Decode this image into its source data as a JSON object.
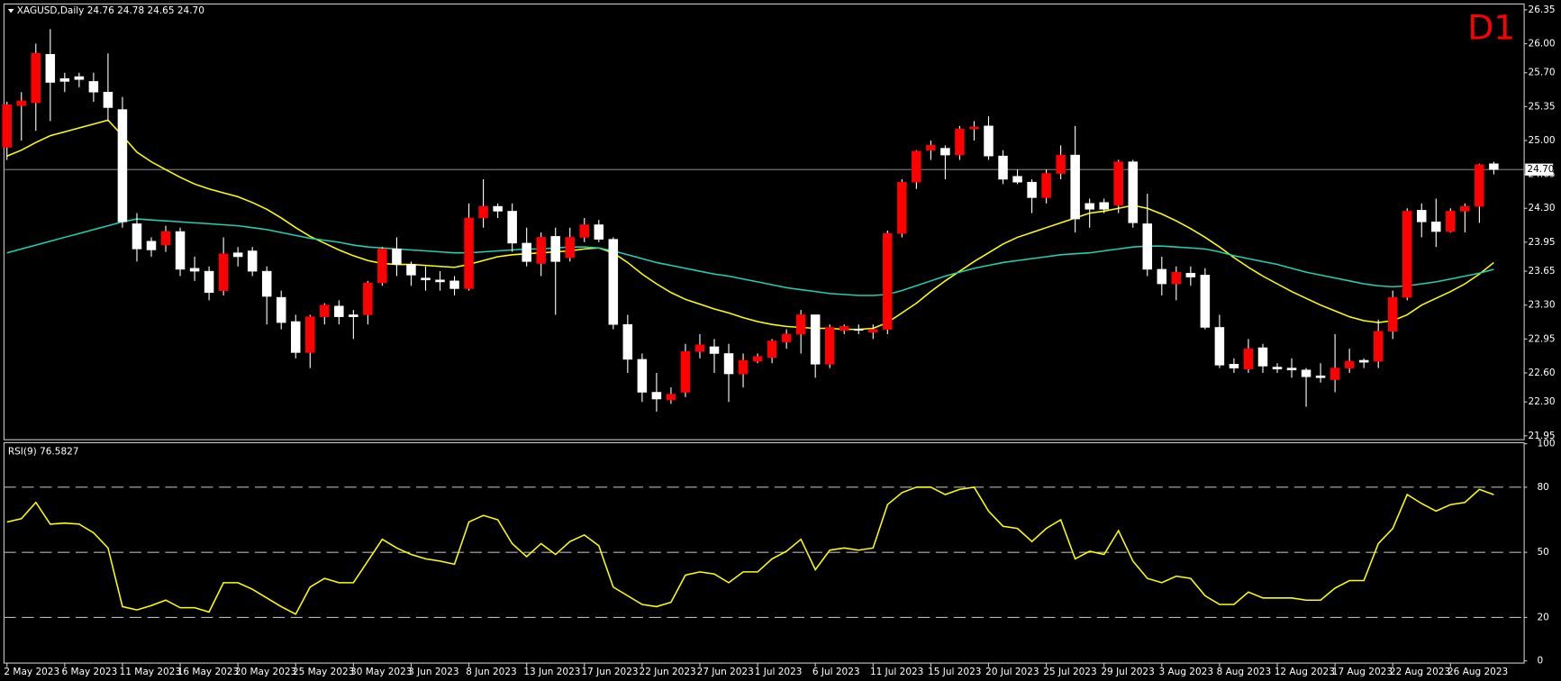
{
  "chart_data": [
    {
      "type": "candlestick",
      "title": "XAGUSD,Daily  24.76 24.78 24.65 24.70",
      "corner_label": "D1",
      "corner_color": "#ff0000",
      "up_color": "#ff0000",
      "down_color": "#ffffff",
      "wick_color": "#ffffff",
      "categories": [
        "2 May 2023",
        null,
        null,
        null,
        "6 May 2023",
        null,
        null,
        null,
        "11 May 2023",
        null,
        null,
        null,
        "16 May 2023",
        null,
        null,
        null,
        "20 May 2023",
        null,
        null,
        null,
        "25 May 2023",
        null,
        null,
        null,
        "30 May 2023",
        null,
        null,
        null,
        "3 Jun 2023",
        null,
        null,
        null,
        "8 Jun 2023",
        null,
        null,
        null,
        "13 Jun 2023",
        null,
        null,
        null,
        "17 Jun 2023",
        null,
        null,
        null,
        "22 Jun 2023",
        null,
        null,
        null,
        "27 Jun 2023",
        null,
        null,
        null,
        "1 Jul 2023",
        null,
        null,
        null,
        "6 Jul 2023",
        null,
        null,
        null,
        "11 Jul 2023",
        null,
        null,
        null,
        "15 Jul 2023",
        null,
        null,
        null,
        "20 Jul 2023",
        null,
        null,
        null,
        "25 Jul 2023",
        null,
        null,
        null,
        "29 Jul 2023",
        null,
        null,
        null,
        "3 Aug 2023",
        null,
        null,
        null,
        "8 Aug 2023",
        null,
        null,
        null,
        "12 Aug 2023",
        null,
        null,
        null,
        "17 Aug 2023",
        null,
        null,
        null,
        "22 Aug 2023",
        null,
        null,
        null,
        "26 Aug 2023",
        null,
        null,
        null
      ],
      "open": [
        24.93,
        25.36,
        25.39,
        25.89,
        25.64,
        25.66,
        25.61,
        25.5,
        25.32,
        24.14,
        23.96,
        23.92,
        24.06,
        23.68,
        23.65,
        23.45,
        23.84,
        23.86,
        23.65,
        23.38,
        23.13,
        22.81,
        23.18,
        23.29,
        23.2,
        23.2,
        23.53,
        23.88,
        23.72,
        23.58,
        23.56,
        23.55,
        23.47,
        24.2,
        24.32,
        24.27,
        23.94,
        23.73,
        24.01,
        23.79,
        24.0,
        24.13,
        23.98,
        23.1,
        22.74,
        22.4,
        22.32,
        22.4,
        22.82,
        22.87,
        22.8,
        22.59,
        22.72,
        22.76,
        22.92,
        23.0,
        23.2,
        22.69,
        23.04,
        23.05,
        23.02,
        23.05,
        24.04,
        24.57,
        24.9,
        24.92,
        24.85,
        25.12,
        25.15,
        24.84,
        24.63,
        24.57,
        24.41,
        24.66,
        24.85,
        24.35,
        24.36,
        24.33,
        24.78,
        24.14,
        23.67,
        23.52,
        23.63,
        23.61,
        23.07,
        22.69,
        22.64,
        22.86,
        22.66,
        22.65,
        22.63,
        22.57,
        22.53,
        22.65,
        22.73,
        22.72,
        23.03,
        23.38,
        24.28,
        24.16,
        24.06,
        24.27,
        24.32,
        24.76
      ],
      "high": [
        25.4,
        25.5,
        26.0,
        26.15,
        25.7,
        25.7,
        25.7,
        25.9,
        25.45,
        24.25,
        24.0,
        24.12,
        24.1,
        23.8,
        23.7,
        24.0,
        23.9,
        23.9,
        23.7,
        23.45,
        23.2,
        23.2,
        23.32,
        23.35,
        23.25,
        23.55,
        23.9,
        24.0,
        23.75,
        23.7,
        23.65,
        23.6,
        24.35,
        24.6,
        24.35,
        24.35,
        24.1,
        24.05,
        24.1,
        24.1,
        24.2,
        24.18,
        24.0,
        23.2,
        22.8,
        22.6,
        22.45,
        22.9,
        23.0,
        22.95,
        22.9,
        22.8,
        22.8,
        22.95,
        23.05,
        23.25,
        23.2,
        23.1,
        23.1,
        23.1,
        23.1,
        24.07,
        24.6,
        24.9,
        25.0,
        24.95,
        25.15,
        25.2,
        25.25,
        24.9,
        24.7,
        24.6,
        24.7,
        24.95,
        25.15,
        24.4,
        24.4,
        24.8,
        24.8,
        24.45,
        23.8,
        23.7,
        23.7,
        23.68,
        23.2,
        22.75,
        22.95,
        22.9,
        22.7,
        22.75,
        22.65,
        22.7,
        23.0,
        22.85,
        22.75,
        23.15,
        23.45,
        24.3,
        24.35,
        24.4,
        24.3,
        24.35,
        24.76,
        24.78
      ],
      "low": [
        24.8,
        25.0,
        25.1,
        25.2,
        25.5,
        25.55,
        25.4,
        25.2,
        24.1,
        23.75,
        23.8,
        23.85,
        23.6,
        23.55,
        23.35,
        23.4,
        23.7,
        23.6,
        23.1,
        23.05,
        22.75,
        22.65,
        23.1,
        23.1,
        22.95,
        23.1,
        23.5,
        23.6,
        23.5,
        23.45,
        23.45,
        23.4,
        23.45,
        24.1,
        24.2,
        23.85,
        23.7,
        23.6,
        23.2,
        23.75,
        23.95,
        23.95,
        23.05,
        22.6,
        22.3,
        22.2,
        22.28,
        22.35,
        22.75,
        22.6,
        22.3,
        22.45,
        22.7,
        22.7,
        22.85,
        22.8,
        22.55,
        22.65,
        23.0,
        23.0,
        22.95,
        23.0,
        24.0,
        24.5,
        24.8,
        24.6,
        24.8,
        25.0,
        24.8,
        24.55,
        24.55,
        24.25,
        24.35,
        24.6,
        24.05,
        24.1,
        24.25,
        24.25,
        24.1,
        23.6,
        23.4,
        23.35,
        23.5,
        23.05,
        22.65,
        22.6,
        22.6,
        22.6,
        22.6,
        22.55,
        22.25,
        22.5,
        22.4,
        22.6,
        22.65,
        22.65,
        22.95,
        23.35,
        24.0,
        23.9,
        24.05,
        24.05,
        24.15,
        24.65
      ],
      "close": [
        25.37,
        25.41,
        25.9,
        25.6,
        25.61,
        25.63,
        25.5,
        25.34,
        24.16,
        23.88,
        23.87,
        24.06,
        23.67,
        23.65,
        23.43,
        23.83,
        23.8,
        23.65,
        23.39,
        23.12,
        22.81,
        23.18,
        23.3,
        23.18,
        23.18,
        23.53,
        23.88,
        23.72,
        23.61,
        23.56,
        23.54,
        23.47,
        24.2,
        24.32,
        24.27,
        23.94,
        23.75,
        24.0,
        23.75,
        24.0,
        24.13,
        23.98,
        23.1,
        22.74,
        22.4,
        22.33,
        22.38,
        22.82,
        22.89,
        22.8,
        22.59,
        22.73,
        22.77,
        22.93,
        23.0,
        23.2,
        22.69,
        23.07,
        23.08,
        23.04,
        23.05,
        24.04,
        24.57,
        24.89,
        24.95,
        24.85,
        25.12,
        25.14,
        24.84,
        24.6,
        24.57,
        24.41,
        24.66,
        24.85,
        24.19,
        24.29,
        24.29,
        24.78,
        24.15,
        23.67,
        23.52,
        23.64,
        23.59,
        23.07,
        22.68,
        22.65,
        22.85,
        22.67,
        22.64,
        22.63,
        22.56,
        22.55,
        22.65,
        22.72,
        22.71,
        23.03,
        23.38,
        24.27,
        24.16,
        24.06,
        24.27,
        24.32,
        24.75,
        24.7
      ],
      "lines": [
        {
          "color": "#ffff00",
          "values": [
            24.84,
            24.9,
            24.98,
            25.05,
            25.09,
            25.13,
            25.17,
            25.21,
            25.05,
            24.88,
            24.78,
            24.7,
            24.62,
            24.55,
            24.5,
            24.46,
            24.42,
            24.36,
            24.29,
            24.2,
            24.1,
            24.01,
            23.94,
            23.87,
            23.81,
            23.76,
            23.73,
            23.72,
            23.72,
            23.71,
            23.7,
            23.69,
            23.72,
            23.76,
            23.8,
            23.82,
            23.83,
            23.84,
            23.85,
            23.86,
            23.88,
            23.89,
            23.84,
            23.74,
            23.62,
            23.52,
            23.43,
            23.36,
            23.31,
            23.26,
            23.22,
            23.17,
            23.13,
            23.1,
            23.08,
            23.07,
            23.06,
            23.06,
            23.05,
            23.05,
            23.06,
            23.12,
            23.22,
            23.32,
            23.44,
            23.55,
            23.65,
            23.75,
            23.84,
            23.93,
            24.0,
            24.05,
            24.1,
            24.15,
            24.2,
            24.25,
            24.27,
            24.3,
            24.33,
            24.3,
            24.24,
            24.17,
            24.09,
            24.0,
            23.9,
            23.79,
            23.69,
            23.6,
            23.52,
            23.44,
            23.37,
            23.3,
            23.24,
            23.18,
            23.14,
            23.12,
            23.14,
            23.2,
            23.3,
            23.37,
            23.44,
            23.52,
            23.62,
            23.74
          ]
        },
        {
          "color": "#20d0b0",
          "values": [
            23.84,
            23.88,
            23.92,
            23.96,
            24.0,
            24.04,
            24.08,
            24.12,
            24.16,
            24.19,
            24.18,
            24.17,
            24.16,
            24.15,
            24.14,
            24.13,
            24.12,
            24.1,
            24.08,
            24.05,
            24.02,
            23.99,
            23.97,
            23.95,
            23.92,
            23.9,
            23.89,
            23.88,
            23.87,
            23.86,
            23.85,
            23.84,
            23.84,
            23.85,
            23.86,
            23.87,
            23.88,
            23.88,
            23.89,
            23.9,
            23.9,
            23.89,
            23.86,
            23.82,
            23.78,
            23.74,
            23.71,
            23.68,
            23.65,
            23.62,
            23.6,
            23.57,
            23.54,
            23.51,
            23.48,
            23.46,
            23.44,
            23.42,
            23.41,
            23.4,
            23.4,
            23.41,
            23.45,
            23.5,
            23.55,
            23.6,
            23.64,
            23.68,
            23.71,
            23.74,
            23.76,
            23.78,
            23.8,
            23.82,
            23.83,
            23.84,
            23.86,
            23.88,
            23.9,
            23.91,
            23.91,
            23.9,
            23.89,
            23.88,
            23.85,
            23.81,
            23.78,
            23.75,
            23.72,
            23.68,
            23.64,
            23.61,
            23.58,
            23.55,
            23.52,
            23.5,
            23.49,
            23.5,
            23.52,
            23.54,
            23.57,
            23.6,
            23.63,
            23.67
          ]
        }
      ],
      "price_line": {
        "value": 24.7,
        "label": "24.70"
      },
      "ylim": [
        21.91,
        26.41
      ],
      "yticks": [
        {
          "value": 26.35,
          "label": "26.35"
        },
        {
          "value": 26,
          "label": "26.00"
        },
        {
          "value": 25.7,
          "label": "25.70"
        },
        {
          "value": 25.35,
          "label": "25.35"
        },
        {
          "value": 25,
          "label": "25.00"
        },
        {
          "value": 24.65,
          "label": "24.65"
        },
        {
          "value": 24.3,
          "label": "24.30"
        },
        {
          "value": 23.95,
          "label": "23.95"
        },
        {
          "value": 23.65,
          "label": "23.65"
        },
        {
          "value": 23.3,
          "label": "23.30"
        },
        {
          "value": 22.95,
          "label": "22.95"
        },
        {
          "value": 22.6,
          "label": "22.60"
        },
        {
          "value": 22.3,
          "label": "22.30"
        },
        {
          "value": 21.95,
          "label": "21.95"
        }
      ]
    },
    {
      "type": "line",
      "title": "RSI(9) 76.5827",
      "color": "#ffff00",
      "values": [
        64,
        65.5,
        73,
        63,
        63.5,
        63,
        59,
        52,
        25,
        23.5,
        25.5,
        28,
        24.5,
        24.5,
        22.5,
        36,
        36,
        33,
        29,
        25,
        21.5,
        34,
        38,
        36,
        36,
        46,
        56,
        52,
        49,
        47,
        46,
        44.5,
        64,
        67,
        65,
        54,
        48,
        54,
        49,
        55,
        58,
        53,
        34,
        30,
        26,
        25,
        27,
        39.5,
        41,
        40,
        36,
        41,
        41,
        47,
        50.5,
        56,
        42,
        51,
        52,
        51,
        52,
        72,
        77.5,
        80,
        80,
        76.6,
        79,
        80,
        69,
        62,
        61,
        55,
        61,
        65,
        47,
        50.5,
        49,
        60,
        46,
        38,
        36,
        39,
        38,
        30,
        26,
        26,
        31.7,
        29,
        29,
        29,
        28,
        28,
        33.5,
        37,
        37,
        54,
        61,
        76.6,
        72.5,
        69,
        72,
        73,
        79,
        76.5827
      ],
      "ylim": [
        -1,
        100.5
      ],
      "yticks": [
        100,
        80,
        50,
        20,
        0
      ],
      "levels": [
        80,
        50,
        20
      ]
    }
  ]
}
